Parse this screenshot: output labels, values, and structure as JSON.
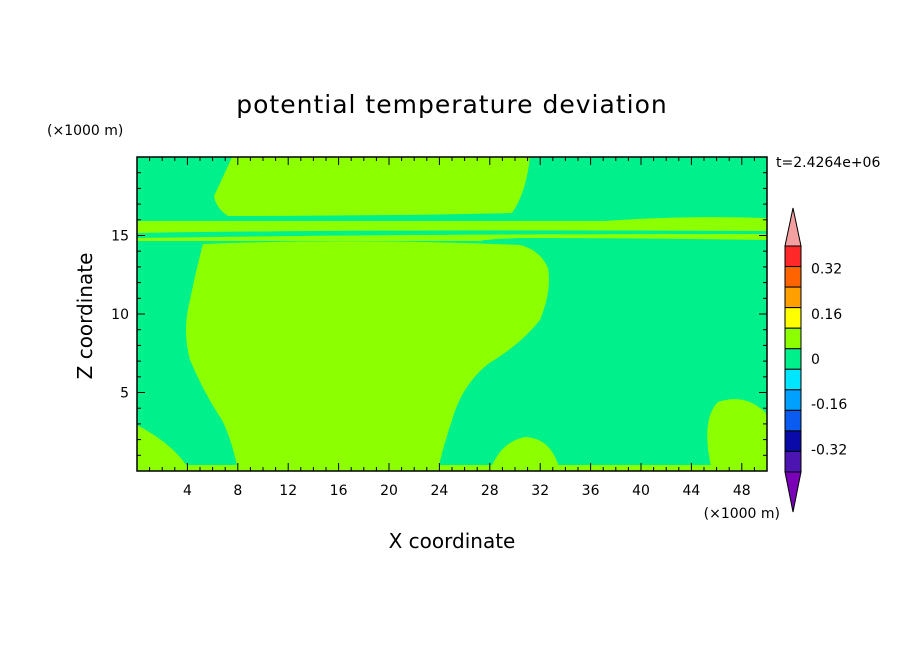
{
  "chart_data": {
    "type": "heatmap",
    "title": "potential temperature deviation",
    "xlabel": "X coordinate",
    "ylabel": "Z coordinate",
    "x_unit": "(×1000 m)",
    "y_unit": "(×1000 m)",
    "time_label": "t=2.4264e+06",
    "xlim": [
      0,
      50
    ],
    "ylim": [
      0,
      20
    ],
    "x_ticks": [
      4,
      8,
      12,
      16,
      20,
      24,
      28,
      32,
      36,
      40,
      44,
      48
    ],
    "y_ticks": [
      5,
      10,
      15
    ],
    "colorbar": {
      "levels": [
        -0.4,
        -0.32,
        -0.24,
        -0.16,
        -0.08,
        0,
        0.08,
        0.16,
        0.24,
        0.32,
        0.4
      ],
      "colors": [
        "#7a00b8",
        "#4c14b0",
        "#0a0aa8",
        "#0a5cf0",
        "#00a0ff",
        "#00e6ff",
        "#00f08c",
        "#8cff00",
        "#ffff00",
        "#ffa000",
        "#ff6400",
        "#ff2828",
        "#f4a0a0"
      ],
      "tick_labels": [
        "0.32",
        "0.16",
        "0",
        "-0.16",
        "-0.32"
      ],
      "tick_values": [
        0.32,
        0.16,
        0,
        -0.16,
        -0.32
      ]
    },
    "fields": {
      "background_level": "0 to -0.08",
      "background_color": "#00f08c",
      "highlight_level": "0 to 0.08",
      "highlight_color": "#8cff00"
    }
  }
}
